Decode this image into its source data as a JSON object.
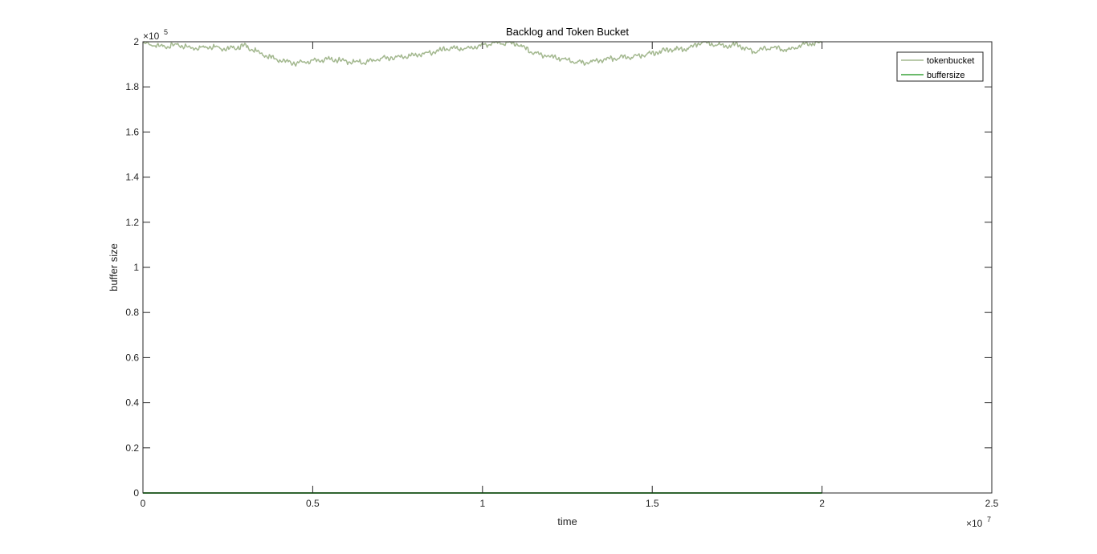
{
  "chart_data": {
    "type": "line",
    "title": "Backlog and Token Bucket",
    "xlabel": "time",
    "ylabel": "buffer size",
    "xlim": [
      0,
      25000000
    ],
    "ylim": [
      0,
      200000
    ],
    "x_ticks": [
      0,
      5000000,
      10000000,
      15000000,
      20000000,
      25000000
    ],
    "x_tick_labels": [
      "0",
      "0.5",
      "1",
      "1.5",
      "2",
      "2.5"
    ],
    "y_ticks": [
      0,
      20000,
      40000,
      60000,
      80000,
      100000,
      120000,
      140000,
      160000,
      180000,
      200000
    ],
    "y_tick_labels": [
      "0",
      "0.2",
      "0.4",
      "0.6",
      "0.8",
      "1",
      "1.2",
      "1.4",
      "1.6",
      "1.8",
      "2"
    ],
    "x_exponent": {
      "base": "×10",
      "power": "7"
    },
    "y_exponent": {
      "base": "×10",
      "power": "5"
    },
    "grid": false,
    "legend_position": "top-right",
    "series": [
      {
        "name": "tokenbucket",
        "color": "#a3b88f",
        "x": [
          0,
          500000,
          1000000,
          1500000,
          2000000,
          2500000,
          3000000,
          3500000,
          4000000,
          4500000,
          5000000,
          5500000,
          6000000,
          6500000,
          7000000,
          7500000,
          8000000,
          8500000,
          9000000,
          9500000,
          10000000,
          10500000,
          11000000,
          11500000,
          12000000,
          12500000,
          13000000,
          13500000,
          14000000,
          14500000,
          15000000,
          15500000,
          16000000,
          16500000,
          17000000,
          17500000,
          18000000,
          18500000,
          19000000,
          19500000,
          20000000
        ],
        "y": [
          199500,
          197800,
          198500,
          197200,
          198000,
          196800,
          198200,
          194500,
          191800,
          190500,
          191500,
          192300,
          191200,
          190800,
          192500,
          193200,
          194000,
          195200,
          197000,
          196800,
          198500,
          199600,
          199200,
          195000,
          193500,
          191800,
          190500,
          191800,
          192800,
          193500,
          195000,
          196500,
          196800,
          199900,
          198300,
          198600,
          195500,
          197500,
          196300,
          198800,
          199800
        ]
      },
      {
        "name": "buffersize",
        "color": "#3aa33a",
        "x": [
          0,
          20000000
        ],
        "y": [
          0,
          0
        ]
      }
    ]
  }
}
